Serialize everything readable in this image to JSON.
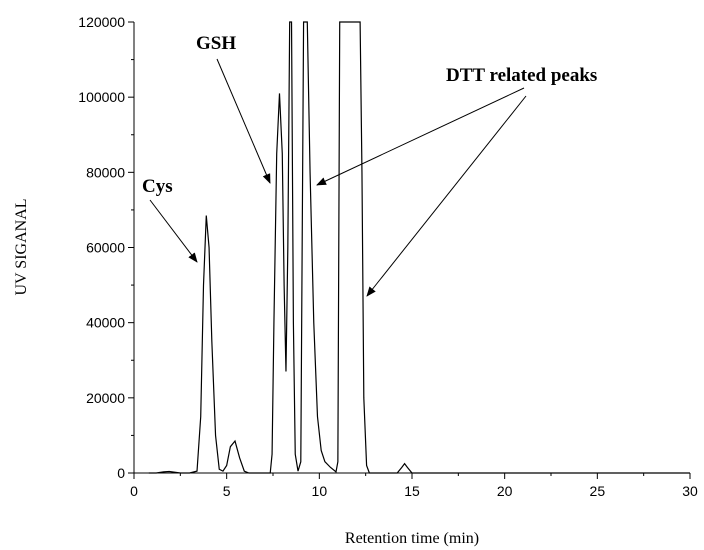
{
  "chart_data": {
    "type": "line",
    "title": "",
    "xlabel": "Retention time (min)",
    "ylabel": "UV SIGANAL",
    "xlim": [
      0,
      30
    ],
    "ylim": [
      0,
      120000
    ],
    "xticks": [
      0,
      5,
      10,
      15,
      20,
      25,
      30
    ],
    "yticks": [
      0,
      20000,
      40000,
      60000,
      80000,
      100000,
      120000
    ],
    "xtick_labels": [
      "0",
      "5",
      "10",
      "15",
      "20",
      "25",
      "30"
    ],
    "ytick_labels": [
      "0",
      "20000",
      "40000",
      "60000",
      "80000",
      "100000",
      "120000"
    ],
    "grid": false,
    "legend": "none",
    "series": [
      {
        "x": [
          0.8,
          1.2,
          1.6,
          1.9,
          2.2,
          2.5,
          3.0,
          3.4,
          3.6,
          3.75,
          3.9,
          4.05,
          4.2,
          4.4,
          4.6,
          4.8,
          5.0,
          5.2,
          5.45,
          5.7,
          5.95,
          6.2,
          6.6,
          7.0,
          7.35,
          7.45,
          7.55,
          7.7,
          7.85,
          8.0,
          8.1,
          8.2,
          8.3,
          8.4,
          8.5,
          8.6,
          8.7,
          8.85,
          9.0,
          9.15,
          9.25,
          9.35,
          9.5,
          9.7,
          9.9,
          10.1,
          10.3,
          10.6,
          10.9,
          11.0,
          11.1,
          11.2,
          11.3,
          11.4,
          11.6,
          11.8,
          12.0,
          12.1,
          12.2,
          12.3,
          12.4,
          12.55,
          12.7,
          13.5,
          14.2,
          14.45,
          14.6,
          14.75,
          15.0,
          16.0,
          20.0,
          25.0,
          30.0
        ],
        "y": [
          0,
          0,
          300,
          400,
          200,
          0,
          0,
          500,
          15000,
          50000,
          68500,
          60000,
          35000,
          10000,
          1000,
          500,
          2000,
          7000,
          8500,
          4000,
          500,
          0,
          0,
          0,
          0,
          5000,
          40000,
          85000,
          101000,
          85000,
          50000,
          27000,
          60000,
          120000,
          120000,
          40000,
          5000,
          500,
          3000,
          120000,
          120000,
          120000,
          80000,
          40000,
          15000,
          6000,
          3000,
          1500,
          300,
          3000,
          120000,
          120000,
          120000,
          120000,
          120000,
          120000,
          120000,
          120000,
          120000,
          80000,
          20000,
          2000,
          0,
          0,
          0,
          1500,
          2500,
          1500,
          0,
          0,
          0,
          0,
          0
        ]
      }
    ],
    "annotations": [
      "Cys",
      "GSH",
      "DTT related peaks"
    ]
  },
  "colors": {
    "line": "#000000",
    "axis": "#000000"
  }
}
